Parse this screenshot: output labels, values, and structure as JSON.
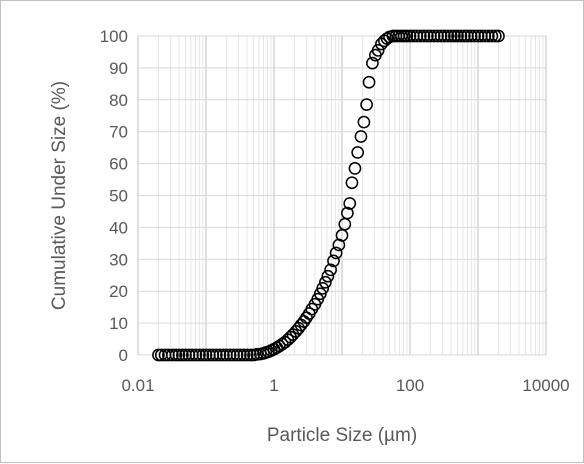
{
  "chart_data": {
    "type": "scatter",
    "title": "",
    "xlabel": "Particle Size (µm)",
    "ylabel": "Cumulative Under Size (%)",
    "x_scale": "log",
    "xlim": [
      0.01,
      10000
    ],
    "ylim": [
      0,
      100
    ],
    "x_ticks": [
      {
        "value": 0.01,
        "label": "0.01"
      },
      {
        "value": 1,
        "label": "1"
      },
      {
        "value": 100,
        "label": "100"
      },
      {
        "value": 10000,
        "label": "10000"
      }
    ],
    "y_ticks": [
      0,
      10,
      20,
      30,
      40,
      50,
      60,
      70,
      80,
      90,
      100
    ],
    "grid": true,
    "legend": "none",
    "marker_color": "#000000",
    "series": [
      {
        "x": [
          0.02,
          0.022,
          0.025,
          0.028,
          0.032,
          0.036,
          0.04,
          0.045,
          0.05,
          0.056,
          0.063,
          0.071,
          0.08,
          0.09,
          0.1,
          0.112,
          0.126,
          0.142,
          0.16,
          0.18,
          0.2,
          0.226,
          0.254,
          0.286,
          0.32,
          0.36,
          0.404,
          0.45,
          0.5,
          0.56,
          0.63,
          0.7,
          0.76,
          0.83,
          0.91,
          1.0,
          1.1,
          1.2,
          1.32,
          1.45,
          1.6,
          1.75,
          1.9,
          2.1,
          2.3,
          2.5,
          2.75,
          3.0,
          3.3,
          3.6,
          4.0,
          4.4,
          4.8,
          5.2,
          5.7,
          6.2,
          6.8,
          7.5,
          8.2,
          9.0,
          10.0,
          11.0,
          12.0,
          13.0,
          14.0,
          15.5,
          17.0,
          19.0,
          21.0,
          23.0,
          25.0,
          28.0,
          31.0,
          34.0,
          38.0,
          42.0,
          46.0,
          50.0,
          56.0,
          62.0,
          68.0,
          75.0,
          82.0,
          90.0,
          100.0,
          112.0,
          126.0,
          142.0,
          160.0,
          180.0,
          200.0,
          226.0,
          254.0,
          286.0,
          320.0,
          360.0,
          404.0,
          450.0,
          500.0,
          560.0,
          630.0,
          700.0,
          790.0,
          890.0,
          1000.0,
          1120.0,
          1260.0,
          1420.0,
          1600.0,
          1800.0,
          2000.0
        ],
        "y": [
          0,
          0,
          0,
          0,
          0,
          0,
          0,
          0,
          0,
          0,
          0,
          0,
          0,
          0,
          0,
          0,
          0,
          0,
          0,
          0,
          0,
          0,
          0,
          0,
          0,
          0,
          0,
          0,
          0,
          0.2,
          0.3,
          0.5,
          0.8,
          1.0,
          1.4,
          1.8,
          2.3,
          2.8,
          3.4,
          4.0,
          4.8,
          5.6,
          6.4,
          7.4,
          8.4,
          9.4,
          10.5,
          11.7,
          13.0,
          14.4,
          15.9,
          17.5,
          19.2,
          20.9,
          22.8,
          24.7,
          26.7,
          29.5,
          32.0,
          34.5,
          37.5,
          41.0,
          44.5,
          47.5,
          54.0,
          58.5,
          63.5,
          68.5,
          73.0,
          78.5,
          85.5,
          91.5,
          94.0,
          95.5,
          97.5,
          98.5,
          99.2,
          99.7,
          100,
          100,
          100,
          100,
          100,
          100,
          100,
          100,
          100,
          100,
          100,
          100,
          100,
          100,
          100,
          100,
          100,
          100,
          100,
          100,
          100,
          100,
          100,
          100,
          100,
          100,
          100,
          100,
          100,
          100,
          100,
          100,
          100
        ]
      }
    ]
  }
}
